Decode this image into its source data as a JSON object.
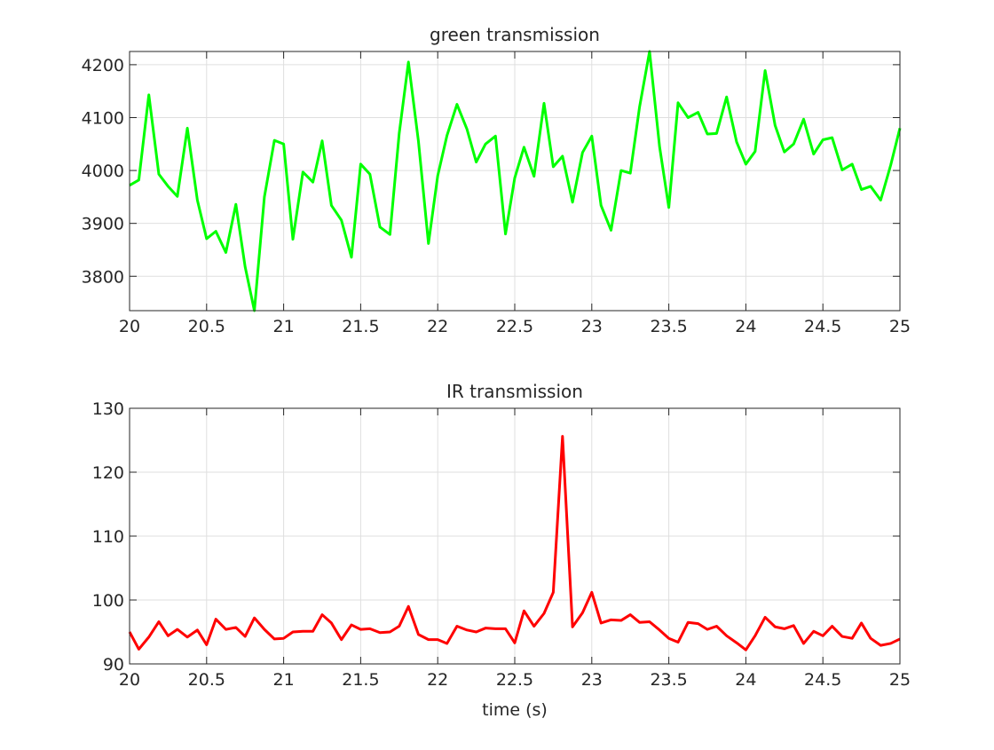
{
  "chart_data": [
    {
      "type": "line",
      "title": "green transmission",
      "xlabel": "",
      "ylabel": "",
      "xlim": [
        20,
        25
      ],
      "ylim": [
        3735,
        4225
      ],
      "grid": true,
      "color": "#00ff00",
      "xticks": [
        20,
        20.5,
        21,
        21.5,
        22,
        22.5,
        23,
        23.5,
        24,
        24.5,
        25
      ],
      "xtick_labels": [
        "20",
        "20.5",
        "21",
        "21.5",
        "22",
        "22.5",
        "23",
        "23.5",
        "24",
        "24.5",
        "25"
      ],
      "yticks": [
        3800,
        3900,
        4000,
        4100,
        4200
      ],
      "ytick_labels": [
        "3800",
        "3900",
        "4000",
        "4100",
        "4200"
      ],
      "series": [
        {
          "x": [
            20.0,
            20.06,
            20.125,
            20.19,
            20.25,
            20.31,
            20.375,
            20.44,
            20.5,
            20.56,
            20.625,
            20.69,
            20.75,
            20.81,
            20.875,
            20.94,
            21.0,
            21.06,
            21.125,
            21.19,
            21.25,
            21.31,
            21.375,
            21.44,
            21.5,
            21.56,
            21.625,
            21.69,
            21.75,
            21.81,
            21.875,
            21.94,
            22.0,
            22.06,
            22.125,
            22.19,
            22.25,
            22.31,
            22.375,
            22.44,
            22.5,
            22.56,
            22.625,
            22.69,
            22.75,
            22.81,
            22.875,
            22.94,
            23.0,
            23.06,
            23.125,
            23.19,
            23.25,
            23.31,
            23.375,
            23.44,
            23.5,
            23.56,
            23.625,
            23.69,
            23.75,
            23.81,
            23.875,
            23.94,
            24.0,
            24.06,
            24.125,
            24.19,
            24.25,
            24.31,
            24.375,
            24.44,
            24.5,
            24.56,
            24.625,
            24.69,
            24.75,
            24.81,
            24.875,
            24.94,
            25.0
          ],
          "values": [
            3972,
            3982,
            4143,
            3993,
            3970,
            3951,
            4080,
            3944,
            3871,
            3885,
            3845,
            3936,
            3818,
            3735,
            3950,
            4057,
            4050,
            3870,
            3997,
            3978,
            4056,
            3934,
            3906,
            3836,
            4012,
            3993,
            3893,
            3879,
            4070,
            4205,
            4055,
            3862,
            3990,
            4066,
            4125,
            4078,
            4016,
            4050,
            4065,
            3880,
            3986,
            4044,
            3989,
            4127,
            4007,
            4027,
            3940,
            4034,
            4065,
            3934,
            3887,
            4000,
            3995,
            4120,
            4225,
            4045,
            3930,
            4128,
            4100,
            4110,
            4069,
            4070,
            4139,
            4054,
            4012,
            4036,
            4189,
            4085,
            4035,
            4050,
            4097,
            4031,
            4058,
            4062,
            4001,
            4012,
            3964,
            3970,
            3944,
            4010,
            4080
          ]
        }
      ]
    },
    {
      "type": "line",
      "title": "IR transmission",
      "xlabel": "time (s)",
      "ylabel": "",
      "xlim": [
        20,
        25
      ],
      "ylim": [
        90,
        130
      ],
      "grid": true,
      "color": "#ff0000",
      "xticks": [
        20,
        20.5,
        21,
        21.5,
        22,
        22.5,
        23,
        23.5,
        24,
        24.5,
        25
      ],
      "xtick_labels": [
        "20",
        "20.5",
        "21",
        "21.5",
        "22",
        "22.5",
        "23",
        "23.5",
        "24",
        "24.5",
        "25"
      ],
      "yticks": [
        90,
        100,
        110,
        120,
        130
      ],
      "ytick_labels": [
        "90",
        "100",
        "110",
        "120",
        "130"
      ],
      "series": [
        {
          "x": [
            20.0,
            20.06,
            20.125,
            20.19,
            20.25,
            20.31,
            20.375,
            20.44,
            20.5,
            20.56,
            20.625,
            20.69,
            20.75,
            20.81,
            20.875,
            20.94,
            21.0,
            21.06,
            21.125,
            21.19,
            21.25,
            21.31,
            21.375,
            21.44,
            21.5,
            21.56,
            21.625,
            21.69,
            21.75,
            21.81,
            21.875,
            21.94,
            22.0,
            22.06,
            22.125,
            22.19,
            22.25,
            22.31,
            22.375,
            22.44,
            22.5,
            22.56,
            22.625,
            22.69,
            22.75,
            22.81,
            22.875,
            22.94,
            23.0,
            23.06,
            23.125,
            23.19,
            23.25,
            23.31,
            23.375,
            23.44,
            23.5,
            23.56,
            23.625,
            23.69,
            23.75,
            23.81,
            23.875,
            23.94,
            24.0,
            24.06,
            24.125,
            24.19,
            24.25,
            24.31,
            24.375,
            24.44,
            24.5,
            24.56,
            24.625,
            24.69,
            24.75,
            24.81,
            24.875,
            24.94,
            25.0
          ],
          "values": [
            95.0,
            92.3,
            94.2,
            96.6,
            94.4,
            95.4,
            94.2,
            95.3,
            93.0,
            97.0,
            95.4,
            95.7,
            94.3,
            97.2,
            95.4,
            93.9,
            94.0,
            95.0,
            95.1,
            95.1,
            97.7,
            96.4,
            93.8,
            96.1,
            95.4,
            95.5,
            94.9,
            95.0,
            95.9,
            99.0,
            94.6,
            93.8,
            93.8,
            93.2,
            95.9,
            95.3,
            95.0,
            95.6,
            95.5,
            95.5,
            93.3,
            98.3,
            95.9,
            97.9,
            101.2,
            125.6,
            95.8,
            98.0,
            101.2,
            96.4,
            96.9,
            96.8,
            97.7,
            96.5,
            96.6,
            95.3,
            94.0,
            93.4,
            96.5,
            96.3,
            95.4,
            95.9,
            94.4,
            93.3,
            92.2,
            94.4,
            97.3,
            95.8,
            95.5,
            96.0,
            93.2,
            95.1,
            94.4,
            95.9,
            94.3,
            94.0,
            96.4,
            94.0,
            92.9,
            93.2,
            93.9
          ]
        }
      ]
    }
  ]
}
